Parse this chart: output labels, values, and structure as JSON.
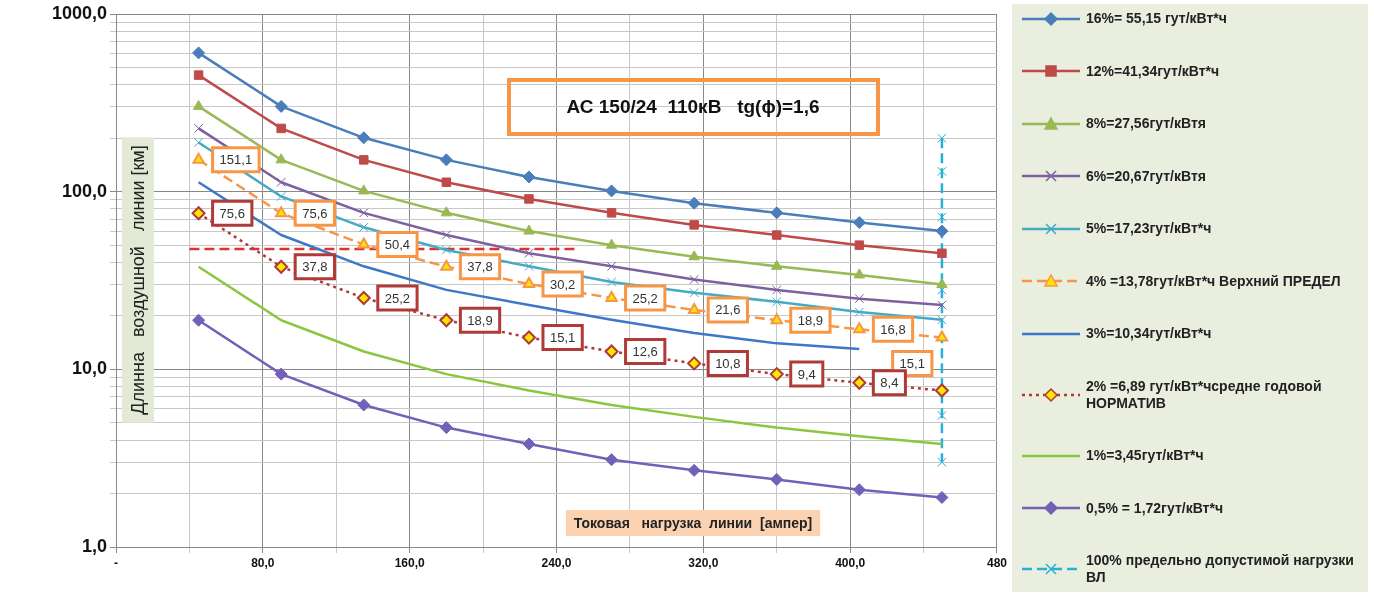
{
  "chart_data": {
    "type": "line",
    "title": "АС 150/24  110кВ   tg(ϕ)=1,6",
    "xlabel": "Токовая   нагрузка  линии  [ампер]",
    "ylabel": "Длинна   воздушной   линии [км]",
    "x": [
      45,
      90,
      135,
      180,
      225,
      270,
      315,
      360,
      405,
      450
    ],
    "series": [
      {
        "name": "16%= 55,15 гут/кВт*ч",
        "color": "#4a7ebb",
        "marker": "diamond",
        "values": [
          604,
          302,
          201,
          151,
          121,
          101,
          86,
          76,
          67,
          60
        ]
      },
      {
        "name": "12%=41,34гут/кВт*ч",
        "color": "#be4b48",
        "marker": "square",
        "values": [
          453,
          227,
          151,
          113,
          91,
          76,
          65,
          57,
          50,
          45
        ]
      },
      {
        "name": "8%=27,56гут/кВтя",
        "color": "#98b954",
        "marker": "triangle",
        "values": [
          302,
          151,
          101,
          76,
          60,
          50,
          43,
          38,
          34,
          30
        ]
      },
      {
        "name": "6%=20,67гут/кВтя",
        "color": "#7d60a0",
        "marker": "cross",
        "values": [
          227,
          113,
          76,
          57,
          45,
          38,
          32,
          28,
          25,
          23
        ]
      },
      {
        "name": "5%=17,23гут/кВт*ч",
        "color": "#46aac5",
        "marker": "cross",
        "values": [
          189,
          94,
          63,
          47,
          38,
          31,
          27,
          24,
          21,
          19
        ]
      },
      {
        "name": "4% =13,78гут/кВт*ч Верхний    ПРЕДЕЛ",
        "color": "#f79646",
        "colors": [
          "#ffe600",
          "#ffe600",
          "#ffe600",
          "#ffe600",
          "#ffe600",
          "#ffe600",
          "#ffe600",
          "#ffe600",
          "#ffe600",
          "#ffe600"
        ],
        "marker": "triangle",
        "line_style": "dashed",
        "values": [
          151.1,
          75.6,
          50.4,
          37.8,
          30.2,
          25.2,
          21.6,
          18.9,
          16.8,
          15.1
        ],
        "value_labels": [
          "151,1",
          "75,6",
          "50,4",
          "37,8",
          "30,2",
          "25,2",
          "21,6",
          "18,9",
          "16,8",
          "15,1"
        ]
      },
      {
        "name": "3%=10,34гут/кВт*ч",
        "color": "#3b78c8",
        "marker": "none",
        "values": [
          113,
          57,
          38,
          28,
          23,
          19,
          16,
          14,
          13,
          null
        ]
      },
      {
        "name": "2% =6,89 гут/кВт*чсредне годовой НОРМАТИВ",
        "color": "#b03a38",
        "colors": [
          "#ffe600",
          "#ffe600",
          "#ffe600",
          "#ffe600",
          "#ffe600",
          "#ffe600",
          "#ffe600",
          "#ffe600",
          "#ffe600",
          "#ffe600"
        ],
        "marker": "diamond",
        "line_style": "dotted",
        "values": [
          75.6,
          37.8,
          25.2,
          18.9,
          15.1,
          12.6,
          10.8,
          9.4,
          8.4,
          7.6
        ],
        "value_labels": [
          "75,6",
          "37,8",
          "25,2",
          "18,9",
          "15,1",
          "12,6",
          "10,8",
          "9,4",
          "8,4",
          null
        ]
      },
      {
        "name": "1%=3,45гут/кВт*ч",
        "color": "#8cc63f",
        "marker": "none",
        "values": [
          37.8,
          18.9,
          12.6,
          9.4,
          7.6,
          6.3,
          5.4,
          4.7,
          4.2,
          3.8
        ]
      },
      {
        "name": "0,5% = 1,72гут/кВт*ч",
        "color": "#7360b8",
        "marker": "diamond",
        "values": [
          18.9,
          9.4,
          6.3,
          4.7,
          3.8,
          3.1,
          2.7,
          2.4,
          2.1,
          1.9
        ]
      },
      {
        "name": "100% предельно допустимой нагрузки ВЛ",
        "color": "#2ab0d8",
        "marker": "cross",
        "line_style": "dashed",
        "x": [
          450,
          450,
          450,
          450,
          450,
          450
        ],
        "values": [
          200,
          130,
          72,
          28,
          5.5,
          3
        ]
      },
      {
        "color": "#e03030",
        "marker": "none",
        "line_style": "dashed",
        "x": [
          40,
          250
        ],
        "values": [
          47.6,
          47.6
        ]
      }
    ],
    "xlim": [
      0,
      480
    ],
    "xticks": [
      {
        "value": 0,
        "label": "-"
      },
      {
        "value": 40,
        "label": null
      },
      {
        "value": 80,
        "label": "80,0"
      },
      {
        "value": 120,
        "label": null
      },
      {
        "value": 160,
        "label": "160,0"
      },
      {
        "value": 200,
        "label": null
      },
      {
        "value": 240,
        "label": "240,0"
      },
      {
        "value": 280,
        "label": null
      },
      {
        "value": 320,
        "label": "320,0"
      },
      {
        "value": 360,
        "label": null
      },
      {
        "value": 400,
        "label": "400,0"
      },
      {
        "value": 440,
        "label": null
      },
      {
        "value": 480,
        "label": "480"
      }
    ],
    "ylim": [
      1,
      1000
    ],
    "yticks": [
      {
        "value": 1,
        "label": "1,0"
      },
      {
        "value": 2,
        "label": null
      },
      {
        "value": 3,
        "label": null
      },
      {
        "value": 4,
        "label": null
      },
      {
        "value": 5,
        "label": null
      },
      {
        "value": 6,
        "label": null
      },
      {
        "value": 7,
        "label": null
      },
      {
        "value": 8,
        "label": null
      },
      {
        "value": 9,
        "label": null
      },
      {
        "value": 10,
        "label": "10,0"
      },
      {
        "value": 20,
        "label": null
      },
      {
        "value": 30,
        "label": null
      },
      {
        "value": 40,
        "label": null
      },
      {
        "value": 50,
        "label": null
      },
      {
        "value": 60,
        "label": null
      },
      {
        "value": 70,
        "label": null
      },
      {
        "value": 80,
        "label": null
      },
      {
        "value": 90,
        "label": null
      },
      {
        "value": 100,
        "label": "100,0"
      },
      {
        "value": 200,
        "label": null
      },
      {
        "value": 300,
        "label": null
      },
      {
        "value": 400,
        "label": null
      },
      {
        "value": 500,
        "label": null
      },
      {
        "value": 600,
        "label": null
      },
      {
        "value": 700,
        "label": null
      },
      {
        "value": 800,
        "label": null
      },
      {
        "value": 900,
        "label": null
      },
      {
        "value": 1000,
        "label": "1000,0"
      }
    ],
    "log": true,
    "grid": true,
    "legend": "right"
  }
}
